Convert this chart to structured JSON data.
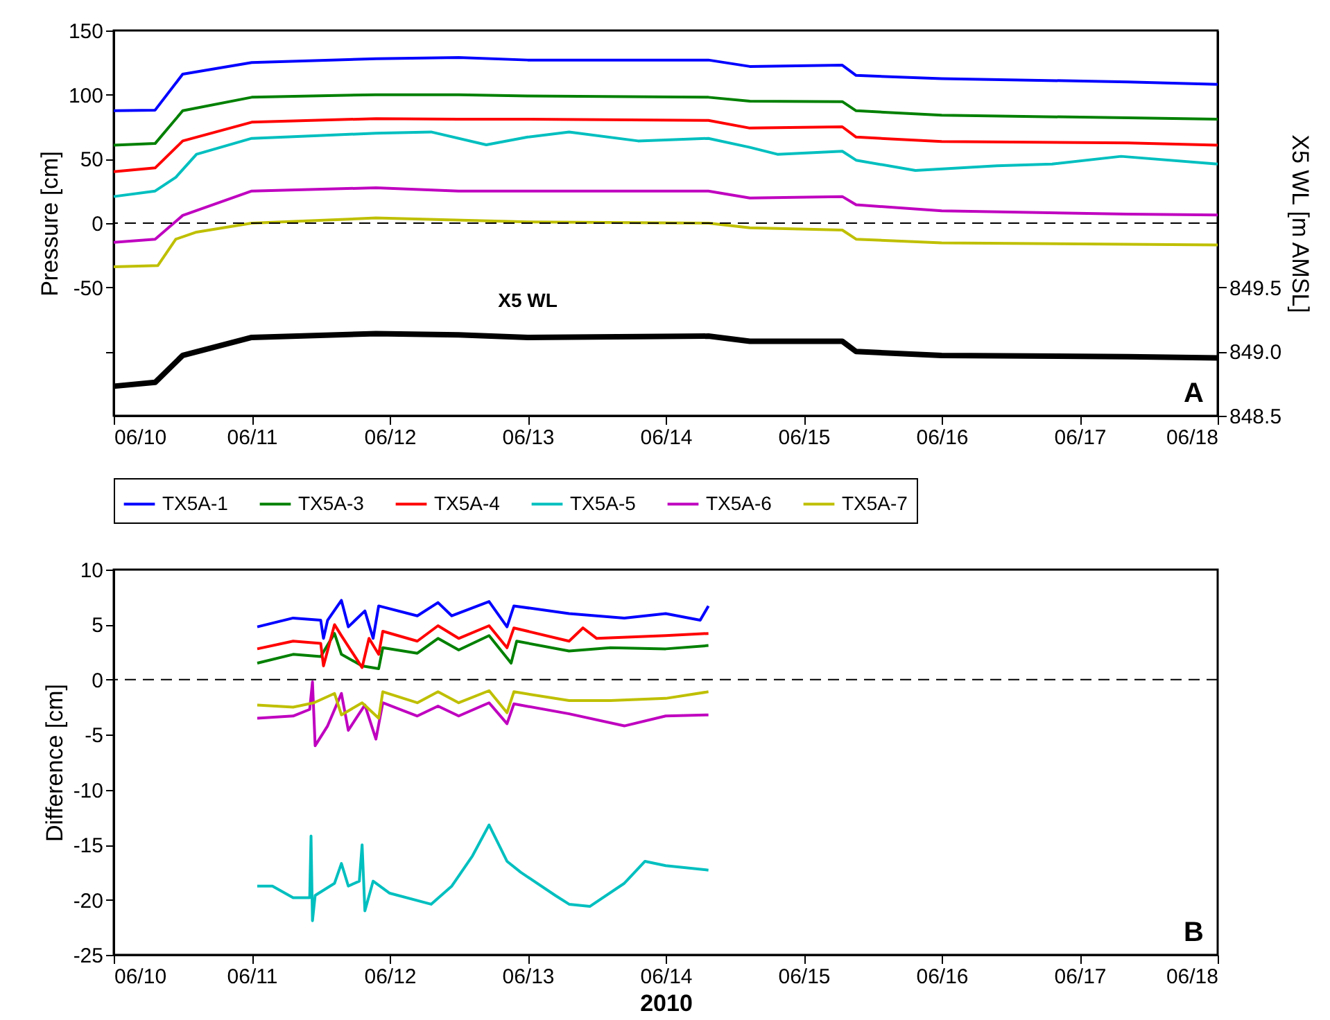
{
  "chart_data": [
    {
      "type": "line",
      "ylabel": "Pressure [cm]",
      "y2label": "X5 WL [m AMSL]",
      "legend": "bottom",
      "annotations": [
        "A"
      ],
      "xlim": [
        "2010-06-10",
        "2010-06-18"
      ],
      "xticks": [
        {
          "value": "2010-06-10",
          "label": "06/10"
        },
        {
          "value": "2010-06-11",
          "label": "06/11"
        },
        {
          "value": "2010-06-12",
          "label": "06/12"
        },
        {
          "value": "2010-06-13",
          "label": "06/13"
        },
        {
          "value": "2010-06-14",
          "label": "06/14"
        },
        {
          "value": "2010-06-15",
          "label": "06/15"
        },
        {
          "value": "2010-06-16",
          "label": "06/16"
        },
        {
          "value": "2010-06-17",
          "label": "06/17"
        },
        {
          "value": "2010-06-18",
          "label": "06/18"
        }
      ],
      "ylim": [
        -150,
        150
      ],
      "yticks": [
        -50,
        0,
        50,
        100,
        150,
        {
          "value": -100,
          "label": null
        }
      ],
      "y2lim": [
        848.5,
        851.5
      ],
      "y2ticks": [
        848.5,
        {
          "value": 849,
          "label": "849.0"
        },
        849.5
      ],
      "ref_lines": [
        {
          "axis": "y",
          "value": 0,
          "color": "#000000",
          "line_style": "dashed"
        }
      ],
      "series": [
        {
          "name": "TX5A-1",
          "color": "#0000ff",
          "x": [
            "2010-06-10T00:00",
            "2010-06-10T07:12",
            "2010-06-10T12:00",
            "2010-06-11T00:00",
            "2010-06-11T21:36",
            "2010-06-12T12:00",
            "2010-06-13T00:00",
            "2010-06-14T07:26",
            "2010-06-14T14:38",
            "2010-06-15T06:43",
            "2010-06-15T09:07",
            "2010-06-16T00:00",
            "2010-06-17T08:24",
            "2010-06-18T00:00"
          ],
          "values": [
            87.5,
            88,
            116,
            125,
            128,
            129,
            127,
            127,
            122,
            123,
            115,
            112.5,
            110,
            108
          ]
        },
        {
          "name": "TX5A-3",
          "color": "#008000",
          "x": [
            "2010-06-10T00:00",
            "2010-06-10T07:12",
            "2010-06-10T12:00",
            "2010-06-11T00:00",
            "2010-06-11T21:36",
            "2010-06-12T12:00",
            "2010-06-13T00:00",
            "2010-06-14T07:26",
            "2010-06-14T14:38",
            "2010-06-15T06:43",
            "2010-06-15T09:07",
            "2010-06-16T00:00",
            "2010-06-17T08:24",
            "2010-06-18T00:00"
          ],
          "values": [
            60.7,
            62,
            87.5,
            98,
            100,
            100,
            99,
            98,
            95,
            94.6,
            87.5,
            84,
            82,
            81
          ]
        },
        {
          "name": "TX5A-4",
          "color": "#ff0000",
          "x": [
            "2010-06-10T00:00",
            "2010-06-10T07:12",
            "2010-06-10T12:00",
            "2010-06-11T00:00",
            "2010-06-11T21:36",
            "2010-06-12T12:00",
            "2010-06-13T00:00",
            "2010-06-14T07:26",
            "2010-06-14T14:38",
            "2010-06-15T06:43",
            "2010-06-15T09:07",
            "2010-06-16T00:00",
            "2010-06-17T08:24",
            "2010-06-18T00:00"
          ],
          "values": [
            40,
            43,
            64,
            78.6,
            81.4,
            81,
            81,
            80,
            74,
            75,
            67,
            63.6,
            62.5,
            60.7
          ]
        },
        {
          "name": "TX5A-5",
          "color": "#00bfbf",
          "x": [
            "2010-06-10T00:00",
            "2010-06-10T07:12",
            "2010-06-10T10:48",
            "2010-06-10T14:24",
            "2010-06-11T00:00",
            "2010-06-11T10:48",
            "2010-06-11T21:36",
            "2010-06-12T07:12",
            "2010-06-12T16:48",
            "2010-06-13T00:00",
            "2010-06-13T07:12",
            "2010-06-13T19:12",
            "2010-06-14T07:26",
            "2010-06-14T14:38",
            "2010-06-14T19:26",
            "2010-06-15T06:43",
            "2010-06-15T09:07",
            "2010-06-15T19:26",
            "2010-06-16T09:36",
            "2010-06-16T19:12",
            "2010-06-17T07:12",
            "2010-06-18T00:00"
          ],
          "values": [
            20.7,
            25,
            35.7,
            53.6,
            66,
            68,
            70,
            71,
            61,
            67,
            71,
            64,
            66,
            59,
            53.6,
            56,
            49,
            41,
            44.6,
            46,
            52,
            46
          ]
        },
        {
          "name": "TX5A-6",
          "color": "#bf00bf",
          "x": [
            "2010-06-10T00:00",
            "2010-06-10T07:12",
            "2010-06-10T12:00",
            "2010-06-11T00:00",
            "2010-06-11T21:36",
            "2010-06-12T12:00",
            "2010-06-13T00:00",
            "2010-06-14T07:26",
            "2010-06-14T14:38",
            "2010-06-15T06:43",
            "2010-06-15T09:07",
            "2010-06-16T00:00",
            "2010-06-17T08:24",
            "2010-06-18T00:00"
          ],
          "values": [
            -15,
            -12.5,
            6,
            25,
            27.5,
            25,
            25,
            25,
            19.6,
            20.7,
            14.3,
            9.6,
            7,
            6.4
          ]
        },
        {
          "name": "TX5A-7",
          "color": "#bfbf00",
          "x": [
            "2010-06-10T00:00",
            "2010-06-10T07:41",
            "2010-06-10T10:48",
            "2010-06-10T14:24",
            "2010-06-11T00:00",
            "2010-06-11T21:36",
            "2010-06-13T00:00",
            "2010-06-14T07:26",
            "2010-06-14T14:38",
            "2010-06-15T06:43",
            "2010-06-15T09:07",
            "2010-06-16T00:00",
            "2010-06-18T00:00"
          ],
          "values": [
            -34,
            -33,
            -12.5,
            -7,
            0,
            4,
            1,
            0,
            -3.6,
            -5.4,
            -12.5,
            -15.4,
            -17
          ]
        },
        {
          "name": "X5 WL",
          "color": "#000000",
          "axis": "y2",
          "x": [
            "2010-06-10T00:00",
            "2010-06-10T07:12",
            "2010-06-10T12:00",
            "2010-06-11T00:00",
            "2010-06-11T21:36",
            "2010-06-12T12:00",
            "2010-06-13T00:00",
            "2010-06-14T07:26",
            "2010-06-14T14:38",
            "2010-06-15T06:43",
            "2010-06-15T09:07",
            "2010-06-16T00:00",
            "2010-06-17T08:24",
            "2010-06-18T00:00"
          ],
          "values": [
            848.73,
            848.76,
            848.97,
            849.11,
            849.14,
            849.13,
            849.11,
            849.12,
            849.08,
            849.08,
            849.0,
            848.97,
            848.96,
            848.95
          ]
        }
      ]
    },
    {
      "type": "line",
      "xlabel": "2010",
      "ylabel": "Difference [cm]",
      "annotations": [
        "B"
      ],
      "xlim": [
        "2010-06-10",
        "2010-06-18"
      ],
      "xticks": [
        {
          "value": "2010-06-10",
          "label": "06/10"
        },
        {
          "value": "2010-06-11",
          "label": "06/11"
        },
        {
          "value": "2010-06-12",
          "label": "06/12"
        },
        {
          "value": "2010-06-13",
          "label": "06/13"
        },
        {
          "value": "2010-06-14",
          "label": "06/14"
        },
        {
          "value": "2010-06-15",
          "label": "06/15"
        },
        {
          "value": "2010-06-16",
          "label": "06/16"
        },
        {
          "value": "2010-06-17",
          "label": "06/17"
        },
        {
          "value": "2010-06-18",
          "label": "06/18"
        }
      ],
      "ylim": [
        -25,
        10
      ],
      "yticks": [
        -25,
        -20,
        -15,
        -10,
        -5,
        0,
        5,
        10
      ],
      "ref_lines": [
        {
          "axis": "y",
          "value": 0,
          "color": "#000000",
          "line_style": "dashed"
        }
      ],
      "series": [
        {
          "color": "#0000ff",
          "x": [
            "2010-06-11T00:58",
            "2010-06-11T07:12",
            "2010-06-11T12:00",
            "2010-06-11T12:29",
            "2010-06-11T13:12",
            "2010-06-11T15:36",
            "2010-06-11T16:48",
            "2010-06-11T19:41",
            "2010-06-11T21:07",
            "2010-06-11T22:05",
            "2010-06-12T04:48",
            "2010-06-12T08:24",
            "2010-06-12T10:48",
            "2010-06-12T17:17",
            "2010-06-12T20:24",
            "2010-06-12T21:36",
            "2010-06-13T07:12",
            "2010-06-13T16:48",
            "2010-06-14T00:00",
            "2010-06-14T06:00",
            "2010-06-14T07:26"
          ],
          "values": [
            4.8,
            5.6,
            5.4,
            3.75,
            5.4,
            7.2,
            4.8,
            6.25,
            3.75,
            6.7,
            5.8,
            7,
            5.8,
            7.1,
            4.8,
            6.7,
            6,
            5.6,
            6,
            5.4,
            6.7
          ]
        },
        {
          "color": "#008000",
          "x": [
            "2010-06-11T00:58",
            "2010-06-11T07:12",
            "2010-06-11T12:00",
            "2010-06-11T14:24",
            "2010-06-11T15:36",
            "2010-06-11T19:12",
            "2010-06-11T22:05",
            "2010-06-11T22:48",
            "2010-06-12T04:48",
            "2010-06-12T08:24",
            "2010-06-12T12:00",
            "2010-06-12T17:17",
            "2010-06-12T21:07",
            "2010-06-12T22:05",
            "2010-06-13T07:12",
            "2010-06-13T14:24",
            "2010-06-14T00:00",
            "2010-06-14T07:26"
          ],
          "values": [
            1.5,
            2.3,
            2.1,
            4.2,
            2.3,
            1.25,
            1.0,
            2.9,
            2.4,
            3.75,
            2.7,
            4,
            1.5,
            3.5,
            2.6,
            2.9,
            2.8,
            3.1
          ]
        },
        {
          "color": "#ff0000",
          "x": [
            "2010-06-11T00:58",
            "2010-06-11T07:12",
            "2010-06-11T12:00",
            "2010-06-11T12:29",
            "2010-06-11T14:24",
            "2010-06-11T15:36",
            "2010-06-11T19:12",
            "2010-06-11T20:24",
            "2010-06-11T22:05",
            "2010-06-11T22:48",
            "2010-06-12T04:48",
            "2010-06-12T08:24",
            "2010-06-12T12:00",
            "2010-06-12T17:17",
            "2010-06-12T20:24",
            "2010-06-12T21:36",
            "2010-06-13T07:12",
            "2010-06-13T09:36",
            "2010-06-13T12:00",
            "2010-06-14T00:00",
            "2010-06-14T07:26"
          ],
          "values": [
            2.8,
            3.5,
            3.3,
            1.25,
            5,
            4,
            1.1,
            3.75,
            2.3,
            4.4,
            3.5,
            4.9,
            3.75,
            4.9,
            2.9,
            4.7,
            3.5,
            4.7,
            3.75,
            4,
            4.2
          ]
        },
        {
          "color": "#00bfbf",
          "x": [
            "2010-06-11T00:58",
            "2010-06-11T03:36",
            "2010-06-11T07:12",
            "2010-06-11T10:05",
            "2010-06-11T10:19",
            "2010-06-11T10:34",
            "2010-06-11T11:02",
            "2010-06-11T14:24",
            "2010-06-11T15:36",
            "2010-06-11T16:48",
            "2010-06-11T18:43",
            "2010-06-11T19:12",
            "2010-06-11T19:41",
            "2010-06-11T21:07",
            "2010-06-12T00:00",
            "2010-06-12T07:12",
            "2010-06-12T10:48",
            "2010-06-12T14:24",
            "2010-06-12T17:17",
            "2010-06-12T20:24",
            "2010-06-12T22:48",
            "2010-06-13T04:48",
            "2010-06-13T07:12",
            "2010-06-13T10:48",
            "2010-06-13T16:48",
            "2010-06-13T20:24",
            "2010-06-14T00:00",
            "2010-06-14T07:26"
          ],
          "values": [
            -18.75,
            -18.75,
            -19.8,
            -19.8,
            -14.2,
            -21.9,
            -19.6,
            -18.5,
            -16.7,
            -18.75,
            -18.3,
            -15,
            -21,
            -18.3,
            -19.4,
            -20.4,
            -18.75,
            -16,
            -13.2,
            -16.5,
            -17.5,
            -19.6,
            -20.4,
            -20.6,
            -18.5,
            -16.5,
            -16.9,
            -17.3
          ]
        },
        {
          "color": "#bf00bf",
          "x": [
            "2010-06-11T00:58",
            "2010-06-11T07:12",
            "2010-06-11T10:05",
            "2010-06-11T10:34",
            "2010-06-11T11:02",
            "2010-06-11T13:12",
            "2010-06-11T15:36",
            "2010-06-11T16:48",
            "2010-06-11T19:41",
            "2010-06-11T21:36",
            "2010-06-11T22:48",
            "2010-06-12T04:48",
            "2010-06-12T08:24",
            "2010-06-12T12:00",
            "2010-06-12T17:17",
            "2010-06-12T20:24",
            "2010-06-12T21:36",
            "2010-06-13T07:12",
            "2010-06-13T16:48",
            "2010-06-14T00:00",
            "2010-06-14T07:26"
          ],
          "values": [
            -3.5,
            -3.3,
            -2.7,
            -0.2,
            -6,
            -4.2,
            -1.25,
            -4.6,
            -2.3,
            -5.4,
            -2.1,
            -3.3,
            -2.4,
            -3.3,
            -2.1,
            -4,
            -2.2,
            -3.1,
            -4.2,
            -3.3,
            -3.2
          ]
        },
        {
          "color": "#bfbf00",
          "x": [
            "2010-06-11T00:58",
            "2010-06-11T07:12",
            "2010-06-11T10:48",
            "2010-06-11T14:24",
            "2010-06-11T15:36",
            "2010-06-11T19:12",
            "2010-06-11T22:05",
            "2010-06-11T22:48",
            "2010-06-12T04:48",
            "2010-06-12T08:24",
            "2010-06-12T12:00",
            "2010-06-12T17:17",
            "2010-06-12T20:24",
            "2010-06-12T21:36",
            "2010-06-13T07:12",
            "2010-06-13T14:24",
            "2010-06-14T00:00",
            "2010-06-14T07:26"
          ],
          "values": [
            -2.3,
            -2.5,
            -2.1,
            -1.25,
            -3.2,
            -2.1,
            -3.5,
            -1.1,
            -2.1,
            -1.1,
            -2.1,
            -1,
            -3,
            -1.1,
            -1.9,
            -1.9,
            -1.7,
            -1.1
          ]
        }
      ]
    }
  ]
}
